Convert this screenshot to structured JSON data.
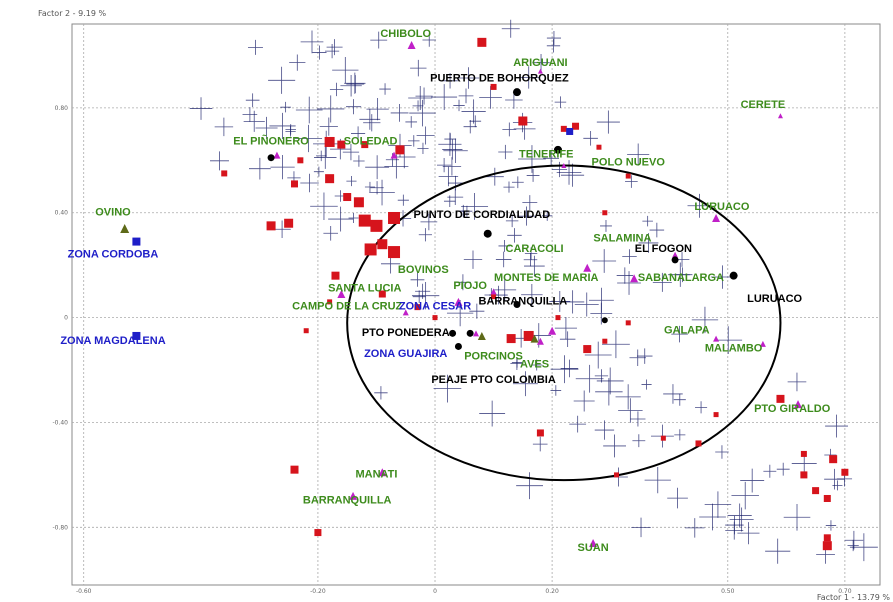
{
  "chart_data": {
    "type": "scatter",
    "title": "",
    "xlabel": "Factor 1 - 13.79 %",
    "ylabel": "Factor 2 - 9.19 %",
    "x_ticks": [
      {
        "v": -0.6,
        "label": "-0.60"
      },
      {
        "v": -0.2,
        "label": "-0.20"
      },
      {
        "v": 0.0,
        "label": "0"
      },
      {
        "v": 0.2,
        "label": "0.20"
      },
      {
        "v": 0.5,
        "label": "0.50"
      },
      {
        "v": 0.7,
        "label": "0.70"
      }
    ],
    "y_ticks": [
      {
        "v": 0.8,
        "label": "0.80"
      },
      {
        "v": 0.4,
        "label": "0.40"
      },
      {
        "v": 0.0,
        "label": "0"
      },
      {
        "v": -0.4,
        "label": "-0.40"
      },
      {
        "v": -0.8,
        "label": "-0.80"
      }
    ],
    "xlim": [
      -0.62,
      0.76
    ],
    "ylim": [
      -1.02,
      1.12
    ],
    "grid": true,
    "colors": {
      "green_label": "#3d8b1c",
      "blue_label": "#1e1ec8",
      "black_label": "#000000",
      "cross": "#0a1060",
      "square": "#d6141c",
      "triangle": "#c020c8",
      "olive": "#5e6a18"
    },
    "ellipse": {
      "cx": 0.22,
      "cy": -0.02,
      "rx": 0.37,
      "ry": 0.6
    },
    "labels": [
      {
        "text": "CHIBOLO",
        "x": -0.05,
        "y": 1.07,
        "color": "green"
      },
      {
        "text": "ARIGUANI",
        "x": 0.18,
        "y": 0.96,
        "color": "green"
      },
      {
        "text": "PUERTO DE BOHORQUEZ",
        "x": 0.11,
        "y": 0.9,
        "color": "black"
      },
      {
        "text": "CERETE",
        "x": 0.56,
        "y": 0.8,
        "color": "green"
      },
      {
        "text": "EL PIÑONERO",
        "x": -0.28,
        "y": 0.66,
        "color": "green"
      },
      {
        "text": "SOLEDAD",
        "x": -0.11,
        "y": 0.66,
        "color": "green"
      },
      {
        "text": "TENERIFE",
        "x": 0.19,
        "y": 0.61,
        "color": "green"
      },
      {
        "text": "POLO NUEVO",
        "x": 0.33,
        "y": 0.58,
        "color": "green"
      },
      {
        "text": "OVINO",
        "x": -0.55,
        "y": 0.39,
        "color": "green"
      },
      {
        "text": "LURUACO",
        "x": 0.49,
        "y": 0.41,
        "color": "green"
      },
      {
        "text": "PUNTO DE CORDIALIDAD",
        "x": 0.08,
        "y": 0.38,
        "color": "black"
      },
      {
        "text": "SALAMINA",
        "x": 0.32,
        "y": 0.29,
        "color": "green"
      },
      {
        "text": "EL FOGON",
        "x": 0.39,
        "y": 0.25,
        "color": "black"
      },
      {
        "text": "ZONA CORDOBA",
        "x": -0.55,
        "y": 0.23,
        "color": "blue"
      },
      {
        "text": "CARACOLI",
        "x": 0.17,
        "y": 0.25,
        "color": "green"
      },
      {
        "text": "BOVINOS",
        "x": -0.02,
        "y": 0.17,
        "color": "green"
      },
      {
        "text": "MONTES DE MARIA",
        "x": 0.19,
        "y": 0.14,
        "color": "green"
      },
      {
        "text": "SABANALARGA",
        "x": 0.42,
        "y": 0.14,
        "color": "green"
      },
      {
        "text": "PIOJO",
        "x": 0.06,
        "y": 0.11,
        "color": "green"
      },
      {
        "text": "SANTA LUCIA",
        "x": -0.12,
        "y": 0.1,
        "color": "green"
      },
      {
        "text": "LURUACO",
        "x": 0.58,
        "y": 0.06,
        "color": "black"
      },
      {
        "text": "BARRANQUILLA",
        "x": 0.15,
        "y": 0.05,
        "color": "black"
      },
      {
        "text": "CAMPO DE LA CRUZ",
        "x": -0.15,
        "y": 0.03,
        "color": "green"
      },
      {
        "text": "ZONA CESAR",
        "x": 0.0,
        "y": 0.03,
        "color": "blue"
      },
      {
        "text": "ZONA MAGDALENA",
        "x": -0.55,
        "y": -0.1,
        "color": "blue"
      },
      {
        "text": "PTO PONEDERA",
        "x": -0.05,
        "y": -0.07,
        "color": "black"
      },
      {
        "text": "GALAPA",
        "x": 0.43,
        "y": -0.06,
        "color": "green"
      },
      {
        "text": "MALAMBO",
        "x": 0.51,
        "y": -0.13,
        "color": "green"
      },
      {
        "text": "ZONA GUAJIRA",
        "x": -0.05,
        "y": -0.15,
        "color": "blue"
      },
      {
        "text": "PORCINOS",
        "x": 0.1,
        "y": -0.16,
        "color": "green"
      },
      {
        "text": "AVES",
        "x": 0.17,
        "y": -0.19,
        "color": "green"
      },
      {
        "text": "PEAJE PTO COLOMBIA",
        "x": 0.1,
        "y": -0.25,
        "color": "black"
      },
      {
        "text": "PTO GIRALDO",
        "x": 0.61,
        "y": -0.36,
        "color": "green"
      },
      {
        "text": "MANATI",
        "x": -0.1,
        "y": -0.61,
        "color": "green"
      },
      {
        "text": "BARRANQUILLA",
        "x": -0.15,
        "y": -0.71,
        "color": "green"
      },
      {
        "text": "SUAN",
        "x": 0.27,
        "y": -0.89,
        "color": "green"
      }
    ],
    "series": [
      {
        "marker": "square",
        "points": [
          [
            0.08,
            1.05,
            9
          ],
          [
            0.15,
            0.75,
            9
          ],
          [
            0.1,
            0.88,
            6
          ],
          [
            0.22,
            0.72,
            6
          ],
          [
            0.24,
            0.73,
            7
          ],
          [
            -0.18,
            0.67,
            10
          ],
          [
            -0.23,
            0.6,
            6
          ],
          [
            -0.16,
            0.66,
            8
          ],
          [
            -0.36,
            0.55,
            6
          ],
          [
            -0.12,
            0.66,
            7
          ],
          [
            -0.06,
            0.64,
            9
          ],
          [
            -0.24,
            0.51,
            7
          ],
          [
            -0.18,
            0.53,
            9
          ],
          [
            -0.15,
            0.46,
            8
          ],
          [
            -0.13,
            0.44,
            10
          ],
          [
            -0.07,
            0.38,
            12
          ],
          [
            -0.12,
            0.37,
            12
          ],
          [
            -0.1,
            0.35,
            12
          ],
          [
            -0.28,
            0.35,
            9
          ],
          [
            -0.25,
            0.36,
            9
          ],
          [
            -0.11,
            0.26,
            12
          ],
          [
            -0.09,
            0.28,
            10
          ],
          [
            -0.07,
            0.25,
            12
          ],
          [
            -0.17,
            0.16,
            8
          ],
          [
            -0.09,
            0.09,
            7
          ],
          [
            -0.18,
            0.06,
            5
          ],
          [
            -0.03,
            0.04,
            6
          ],
          [
            0.0,
            0.0,
            5
          ],
          [
            -0.22,
            -0.05,
            5
          ],
          [
            0.13,
            -0.08,
            9
          ],
          [
            0.16,
            -0.07,
            10
          ],
          [
            0.1,
            0.08,
            5
          ],
          [
            0.21,
            0.0,
            5
          ],
          [
            0.26,
            -0.12,
            8
          ],
          [
            0.29,
            -0.09,
            5
          ],
          [
            0.33,
            -0.02,
            5
          ],
          [
            0.29,
            0.4,
            5
          ],
          [
            0.33,
            0.54,
            5
          ],
          [
            0.28,
            0.65,
            5
          ],
          [
            0.18,
            -0.44,
            7
          ],
          [
            0.31,
            -0.6,
            5
          ],
          [
            0.39,
            -0.46,
            5
          ],
          [
            0.48,
            -0.37,
            5
          ],
          [
            0.59,
            -0.31,
            8
          ],
          [
            0.63,
            -0.6,
            7
          ],
          [
            0.65,
            -0.66,
            7
          ],
          [
            0.67,
            -0.69,
            7
          ],
          [
            0.68,
            -0.54,
            8
          ],
          [
            0.63,
            -0.52,
            6
          ],
          [
            0.7,
            -0.59,
            7
          ],
          [
            -0.24,
            -0.58,
            8
          ],
          [
            -0.2,
            -0.82,
            7
          ],
          [
            0.67,
            -0.87,
            9
          ],
          [
            0.67,
            -0.84,
            7
          ],
          [
            0.45,
            -0.48,
            6
          ]
        ]
      },
      {
        "marker": "blue-square",
        "points": [
          [
            -0.51,
            0.29,
            8
          ],
          [
            -0.51,
            -0.07,
            8
          ],
          [
            0.23,
            0.71,
            7
          ]
        ]
      },
      {
        "marker": "triangle",
        "points": [
          [
            -0.04,
            1.04,
            8
          ],
          [
            0.18,
            0.94,
            5
          ],
          [
            0.59,
            0.77,
            5
          ],
          [
            -0.27,
            0.62,
            7
          ],
          [
            -0.07,
            0.62,
            7
          ],
          [
            0.22,
            0.58,
            5
          ],
          [
            0.48,
            0.38,
            8
          ],
          [
            0.41,
            0.24,
            6
          ],
          [
            0.26,
            0.19,
            8
          ],
          [
            0.34,
            0.15,
            8
          ],
          [
            0.1,
            0.1,
            6
          ],
          [
            -0.16,
            0.09,
            8
          ],
          [
            0.04,
            0.06,
            8
          ],
          [
            -0.05,
            0.02,
            6
          ],
          [
            0.2,
            -0.05,
            8
          ],
          [
            0.07,
            -0.06,
            6
          ],
          [
            0.18,
            -0.09,
            7
          ],
          [
            0.48,
            -0.08,
            6
          ],
          [
            0.56,
            -0.1,
            6
          ],
          [
            0.62,
            -0.33,
            8
          ],
          [
            -0.09,
            -0.59,
            8
          ],
          [
            -0.14,
            -0.68,
            8
          ],
          [
            0.27,
            -0.86,
            8
          ]
        ]
      },
      {
        "marker": "olive-triangle",
        "points": [
          [
            -0.53,
            0.34,
            9
          ],
          [
            0.08,
            -0.07,
            8
          ],
          [
            0.17,
            -0.08,
            8
          ]
        ]
      },
      {
        "marker": "dot",
        "points": [
          [
            0.14,
            0.86,
            8
          ],
          [
            0.21,
            0.64,
            8
          ],
          [
            -0.28,
            0.61,
            7
          ],
          [
            0.09,
            0.32,
            8
          ],
          [
            0.41,
            0.22,
            7
          ],
          [
            0.51,
            0.16,
            8
          ],
          [
            0.14,
            0.05,
            7
          ],
          [
            0.03,
            -0.06,
            7
          ],
          [
            0.06,
            -0.06,
            7
          ],
          [
            0.04,
            -0.11,
            7
          ],
          [
            0.29,
            -0.01,
            6
          ]
        ]
      }
    ]
  }
}
